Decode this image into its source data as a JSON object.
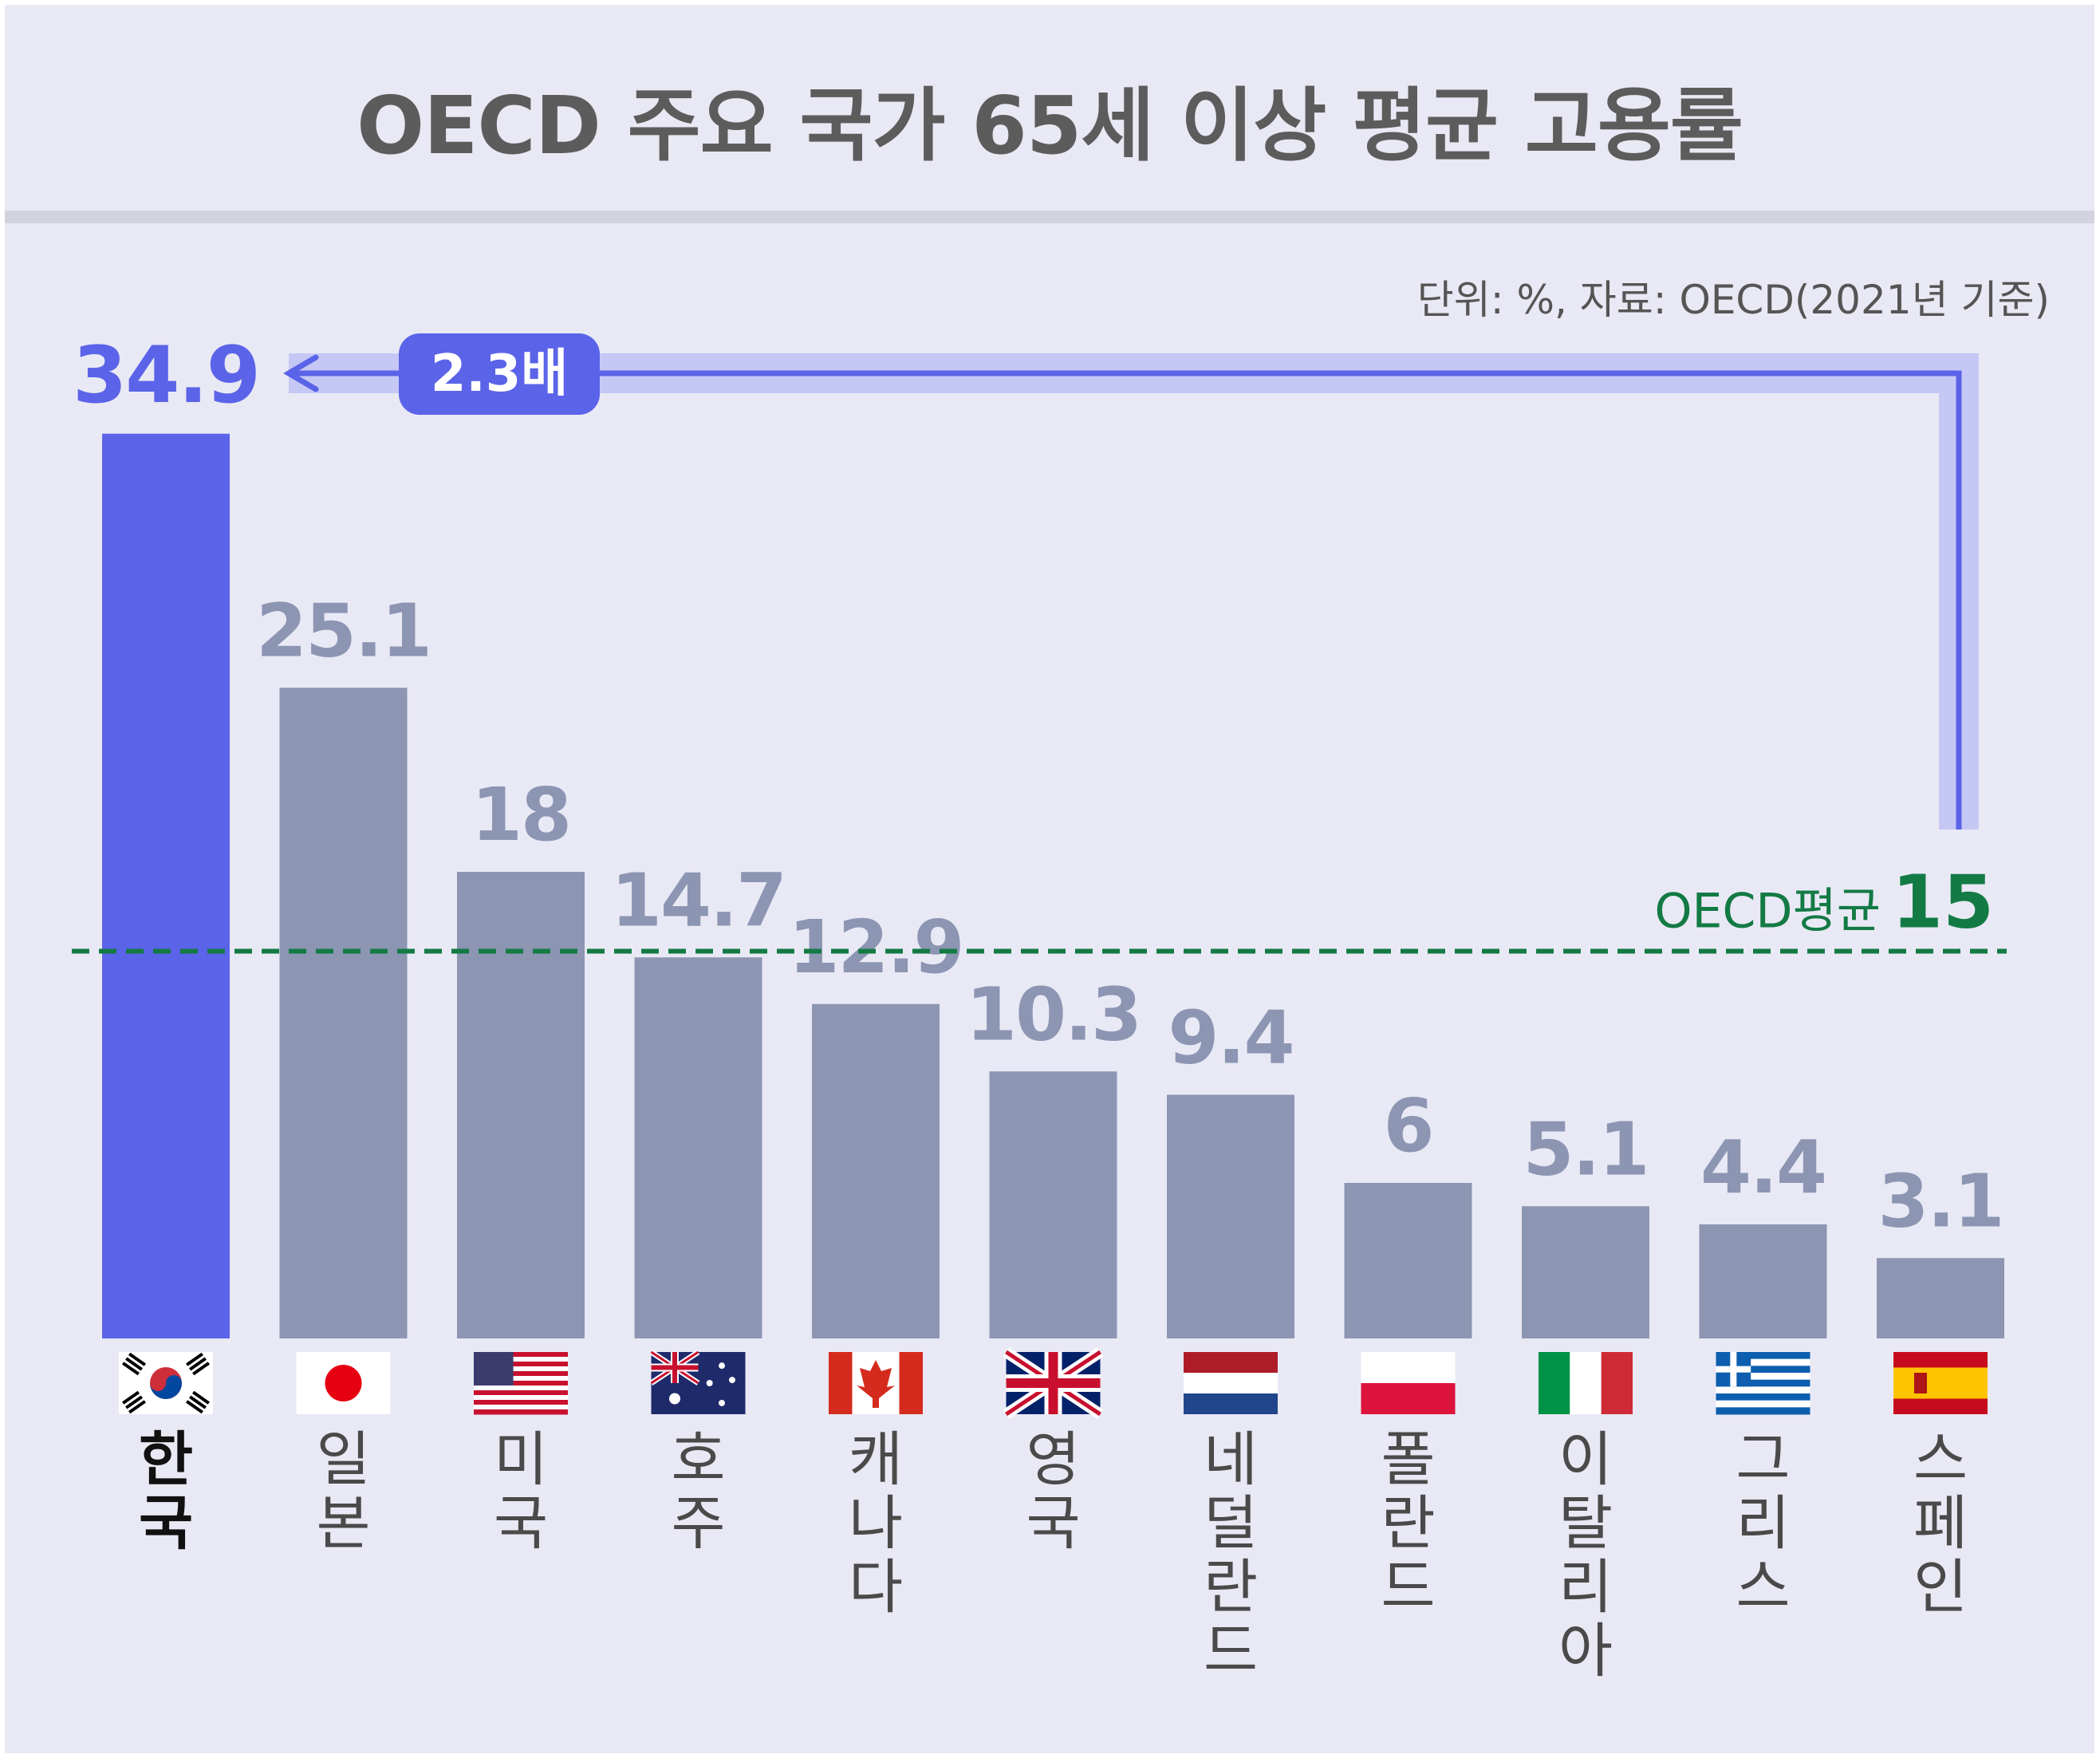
{
  "title": "OECD 주요 국가 65세 이상 평균 고용률",
  "unit_note": "단위: %, 자료: OECD(2021년 기준)",
  "multiplier_label": "2.3배",
  "average_label_prefix": "OECD평균",
  "colors": {
    "highlight": "#5b63e8",
    "bar": "#8c95b2",
    "average": "#137a44",
    "arrow_band": "#c5c8f4",
    "background": "#e9e9f5",
    "title_text": "#5c5c5c",
    "highlight_label": "#111111",
    "country_label": "#4a4a4a"
  },
  "chart_data": {
    "type": "bar",
    "title": "OECD 주요 국가 65세 이상 평균 고용률",
    "xlabel": "",
    "ylabel": "",
    "unit": "%",
    "categories": [
      "한국",
      "일본",
      "미국",
      "호주",
      "캐나다",
      "영국",
      "네덜란드",
      "폴란드",
      "이탈리아",
      "그리스",
      "스페인"
    ],
    "values": [
      34.9,
      25.1,
      18,
      14.7,
      12.9,
      10.3,
      9.4,
      6,
      5.1,
      4.4,
      3.1
    ],
    "value_labels": [
      "34.9",
      "25.1",
      "18",
      "14.7",
      "12.9",
      "10.3",
      "9.4",
      "6",
      "5.1",
      "4.4",
      "3.1"
    ],
    "highlight_index": 0,
    "reference_line": {
      "label": "OECD평균",
      "value": 15,
      "value_label": "15"
    },
    "ratio_annotation": "2.3배",
    "flags": [
      "korea-flag",
      "japan-flag",
      "usa-flag",
      "australia-flag",
      "canada-flag",
      "uk-flag",
      "netherlands-flag",
      "poland-flag",
      "italy-flag",
      "greece-flag",
      "spain-flag"
    ],
    "ylim": [
      0,
      34.9
    ],
    "grid": false,
    "legend": "none"
  }
}
